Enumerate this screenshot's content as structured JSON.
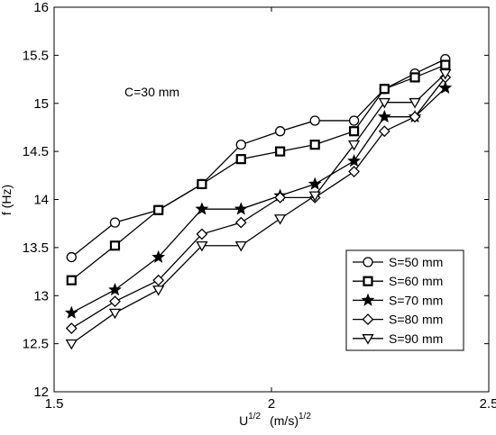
{
  "chart_data": {
    "type": "line",
    "title": "",
    "xlabel": {
      "base": "U",
      "sup": "1/2",
      "unit": "(m/s)",
      "unit_sup": "1/2"
    },
    "ylabel": "f (Hz)",
    "xlim": [
      1.5,
      2.5
    ],
    "ylim": [
      12,
      16
    ],
    "xticks": [
      "1.5",
      "2",
      "2.5"
    ],
    "yticks": [
      "12",
      "12.5",
      "13",
      "13.5",
      "14",
      "14.5",
      "15",
      "15.5",
      "16"
    ],
    "grid": false,
    "legend_position": "bottom-right",
    "annotation": "C=30 mm",
    "x": [
      1.54,
      1.64,
      1.74,
      1.84,
      1.93,
      2.02,
      2.1,
      2.19,
      2.26,
      2.33,
      2.4
    ],
    "series": [
      {
        "name": "S=50 mm",
        "marker": "circle",
        "values": [
          13.4,
          13.76,
          13.89,
          14.16,
          14.57,
          14.71,
          14.82,
          14.82,
          15.15,
          15.31,
          15.46
        ]
      },
      {
        "name": "S=60 mm",
        "marker": "square",
        "values": [
          13.16,
          13.52,
          13.89,
          14.16,
          14.42,
          14.5,
          14.57,
          14.71,
          15.15,
          15.27,
          15.4
        ]
      },
      {
        "name": "S=70 mm",
        "marker": "star",
        "values": [
          12.82,
          13.06,
          13.4,
          13.9,
          13.9,
          14.04,
          14.16,
          14.4,
          14.86,
          14.86,
          15.16
        ]
      },
      {
        "name": "S=80 mm",
        "marker": "diamond",
        "values": [
          12.66,
          12.94,
          13.16,
          13.64,
          13.76,
          14.02,
          14.02,
          14.29,
          14.71,
          14.86,
          15.27
        ]
      },
      {
        "name": "S=90 mm",
        "marker": "triangle-down",
        "values": [
          12.5,
          12.82,
          13.06,
          13.52,
          13.52,
          13.8,
          14.04,
          14.57,
          15.01,
          15.01,
          15.31
        ]
      }
    ]
  }
}
